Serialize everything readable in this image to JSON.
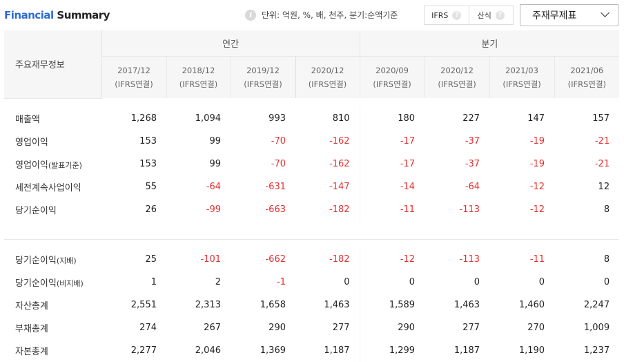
{
  "header": {
    "title_part1": "Financial",
    "title_part2": "Summary",
    "info_icon": "info-icon",
    "unit_text": "단위: 억원, %, 배, 천주, 분기:순액기준",
    "ifrs_label": "IFRS",
    "formula_label": "산식",
    "help_icon": "question-icon",
    "dropdown_value": "주재무제표"
  },
  "table": {
    "corner_label": "주요재무정보",
    "groups": {
      "annual": "연간",
      "quarterly": "분기"
    },
    "periods": [
      {
        "date": "2017/12",
        "basis": "(IFRS연결)"
      },
      {
        "date": "2018/12",
        "basis": "(IFRS연결)"
      },
      {
        "date": "2019/12",
        "basis": "(IFRS연결)"
      },
      {
        "date": "2020/12",
        "basis": "(IFRS연결)"
      },
      {
        "date": "2020/09",
        "basis": "(IFRS연결)"
      },
      {
        "date": "2020/12",
        "basis": "(IFRS연결)"
      },
      {
        "date": "2021/03",
        "basis": "(IFRS연결)"
      },
      {
        "date": "2021/06",
        "basis": "(IFRS연결)"
      }
    ],
    "rows_top": [
      {
        "label": "매출액",
        "sub": "",
        "values": [
          "1,268",
          "1,094",
          "993",
          "810",
          "180",
          "227",
          "147",
          "157"
        ]
      },
      {
        "label": "영업이익",
        "sub": "",
        "values": [
          "153",
          "99",
          "-70",
          "-162",
          "-17",
          "-37",
          "-19",
          "-21"
        ]
      },
      {
        "label": "영업이익",
        "sub": "(발표기준)",
        "values": [
          "153",
          "99",
          "-70",
          "-162",
          "-17",
          "-37",
          "-19",
          "-21"
        ]
      },
      {
        "label": "세전계속사업이익",
        "sub": "",
        "values": [
          "55",
          "-64",
          "-631",
          "-147",
          "-14",
          "-64",
          "-12",
          "12"
        ]
      },
      {
        "label": "당기순이익",
        "sub": "",
        "values": [
          "26",
          "-99",
          "-663",
          "-182",
          "-11",
          "-113",
          "-12",
          "8"
        ]
      }
    ],
    "rows_bottom": [
      {
        "label": "당기순이익",
        "sub": "(지배)",
        "values": [
          "25",
          "-101",
          "-662",
          "-182",
          "-12",
          "-113",
          "-11",
          "8"
        ]
      },
      {
        "label": "당기순이익",
        "sub": "(비지배)",
        "values": [
          "1",
          "2",
          "-1",
          "0",
          "0",
          "0",
          "0",
          "0"
        ]
      },
      {
        "label": "자산총계",
        "sub": "",
        "values": [
          "2,551",
          "2,313",
          "1,658",
          "1,463",
          "1,589",
          "1,463",
          "1,460",
          "2,247"
        ]
      },
      {
        "label": "부채총계",
        "sub": "",
        "values": [
          "274",
          "267",
          "290",
          "277",
          "290",
          "277",
          "270",
          "1,009"
        ]
      },
      {
        "label": "자본총계",
        "sub": "",
        "values": [
          "2,277",
          "2,046",
          "1,369",
          "1,187",
          "1,299",
          "1,187",
          "1,190",
          "1,237"
        ]
      }
    ]
  },
  "colors": {
    "title_accent": "#2d6bd4",
    "negative": "#e62e2e"
  }
}
